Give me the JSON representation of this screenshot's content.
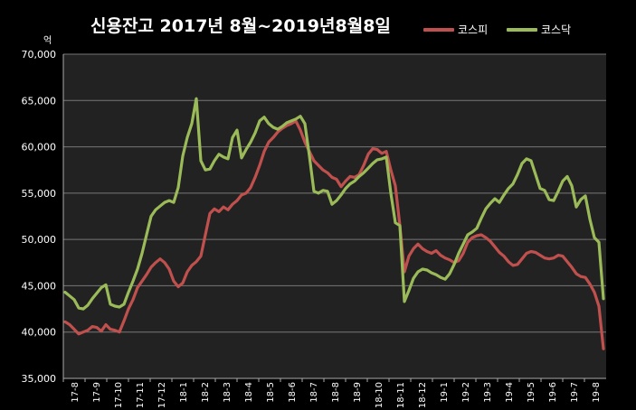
{
  "chart_data": {
    "type": "line",
    "title": "신용잔고 2017년 8월~2019년8월8일",
    "unit_label": "억",
    "ylim": [
      35000,
      70000
    ],
    "y_ticks": [
      "35,000",
      "40,000",
      "45,000",
      "50,000",
      "55,000",
      "60,000",
      "65,000",
      "70,000"
    ],
    "x_ticks": [
      "17-8",
      "17-9",
      "17-10",
      "17-11",
      "17-12",
      "18-1",
      "18-2",
      "18-3",
      "18-4",
      "18-5",
      "18-6",
      "18-7",
      "18-8",
      "18-9",
      "18-10",
      "18-11",
      "18-12",
      "19-1",
      "19-2",
      "19-3",
      "19-4",
      "19-5",
      "19-6",
      "19-7",
      "19-8"
    ],
    "grid": true,
    "legend_position": "top-right",
    "series": [
      {
        "name": "코스피",
        "color": "#c0504d",
        "values": [
          41100,
          40800,
          40300,
          39800,
          40000,
          40200,
          40600,
          40500,
          40100,
          40800,
          40300,
          40200,
          40000,
          41200,
          42500,
          43500,
          44800,
          45500,
          46200,
          47000,
          47500,
          47900,
          47500,
          46800,
          45500,
          44900,
          45300,
          46500,
          47200,
          47600,
          48200,
          50500,
          52800,
          53300,
          53000,
          53500,
          53200,
          53800,
          54200,
          54800,
          55000,
          55600,
          56700,
          58000,
          59500,
          60500,
          61000,
          61600,
          62000,
          62300,
          62500,
          62800,
          61800,
          60500,
          59500,
          58500,
          58000,
          57500,
          57200,
          56700,
          56500,
          55700,
          56300,
          56800,
          56700,
          57000,
          58000,
          59200,
          59800,
          59700,
          59300,
          59500,
          57500,
          55800,
          51500,
          46500,
          48200,
          49000,
          49500,
          49000,
          48700,
          48500,
          48800,
          48300,
          48000,
          47800,
          47500,
          47700,
          48500,
          49700,
          50200,
          50400,
          50500,
          50200,
          49800,
          49200,
          48600,
          48200,
          47600,
          47200,
          47300,
          47900,
          48500,
          48700,
          48600,
          48300,
          48000,
          47900,
          48000,
          48300,
          48200,
          47600,
          47000,
          46300,
          46000,
          45900,
          45200,
          44300,
          42800,
          38200
        ]
      },
      {
        "name": "코스닥",
        "color": "#9bbb59",
        "values": [
          44300,
          43900,
          43500,
          42600,
          42500,
          42900,
          43600,
          44200,
          44800,
          45100,
          43000,
          42800,
          42700,
          43000,
          44300,
          45500,
          46800,
          48500,
          50500,
          52500,
          53200,
          53600,
          54000,
          54200,
          54000,
          55600,
          59000,
          61000,
          62500,
          65200,
          58500,
          57500,
          57600,
          58500,
          59200,
          58900,
          58700,
          61000,
          61800,
          58800,
          59700,
          60500,
          61500,
          62800,
          63200,
          62500,
          62100,
          61900,
          62200,
          62600,
          62800,
          63000,
          63300,
          62500,
          59000,
          55200,
          55000,
          55300,
          55200,
          53800,
          54200,
          54800,
          55500,
          56000,
          56300,
          56800,
          57200,
          57700,
          58200,
          58600,
          58700,
          58900,
          55000,
          51800,
          51500,
          43300,
          44500,
          45800,
          46500,
          46800,
          46700,
          46400,
          46200,
          45900,
          45700,
          46300,
          47300,
          48500,
          49500,
          50500,
          50800,
          51200,
          52300,
          53300,
          53900,
          54400,
          54000,
          54800,
          55500,
          56000,
          57000,
          58200,
          58700,
          58500,
          57000,
          55500,
          55300,
          54300,
          54200,
          55200,
          56300,
          56800,
          55800,
          53500,
          54300,
          54700,
          52200,
          50200,
          49700,
          43600
        ]
      }
    ]
  }
}
